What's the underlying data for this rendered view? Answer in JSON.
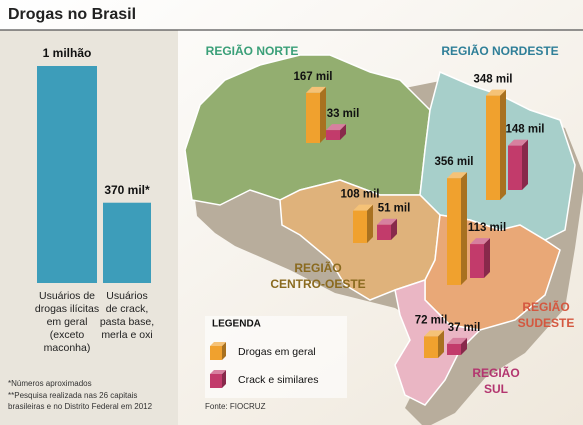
{
  "title": "Drogas no Brasil",
  "chart_data": [
    {
      "type": "bar",
      "categories": [
        [
          "Usuários de",
          "drogas ilícitas",
          "em geral",
          "(exceto",
          "maconha)"
        ],
        [
          "Usuários",
          "de crack,",
          "pasta base,",
          "merla e oxi"
        ]
      ],
      "values": [
        1000000,
        370000
      ],
      "value_labels": [
        "1 milhão",
        "370 mil*"
      ],
      "color": "#3d9dba"
    },
    {
      "type": "map-bars",
      "categories": [
        [
          "REGIÃO NORTE"
        ],
        [
          "REGIÃO NORDESTE"
        ],
        [
          "REGIÃO",
          "CENTRO-OESTE"
        ],
        [
          "REGIÃO",
          "SUDESTE"
        ],
        [
          "REGIÃO",
          "SUL"
        ]
      ],
      "region_colors": [
        "#3a9f78",
        "#2f7f98",
        "#8a6a1f",
        "#d4573f",
        "#b3356f"
      ],
      "series": [
        {
          "name": "Drogas em geral",
          "color": "#f0a12e",
          "values": [
            167000,
            348000,
            108000,
            356000,
            72000
          ],
          "value_labels": [
            "167 mil",
            "348 mil",
            "108 mil",
            "356 mil",
            "72 mil"
          ]
        },
        {
          "name": "Crack e similares",
          "color": "#c23b6b",
          "values": [
            33000,
            148000,
            51000,
            113000,
            37000
          ],
          "value_labels": [
            "33 mil",
            "148 mil",
            "51 mil",
            "113 mil",
            "37 mil"
          ]
        }
      ],
      "legend_title": "LEGENDA"
    }
  ],
  "notes": [
    "*Números aproximados",
    "**Pesquisa realizada nas 26 capitais",
    "brasileiras e no Distrito Federal em 2012"
  ],
  "source": "Fonte: FIOCRUZ"
}
